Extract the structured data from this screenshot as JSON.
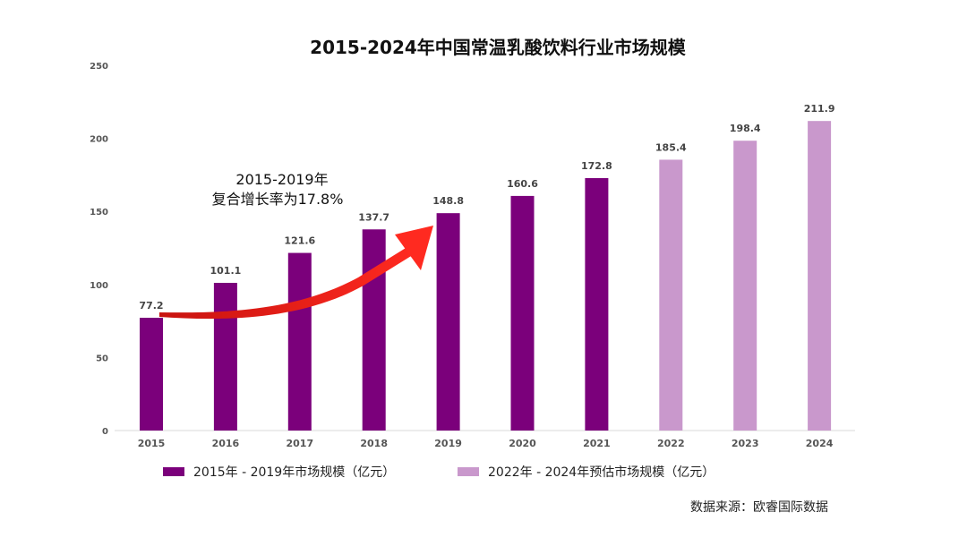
{
  "chart_data": {
    "type": "bar",
    "title": "2015-2024年中国常温乳酸饮料行业市场规模",
    "categories": [
      "2015",
      "2016",
      "2017",
      "2018",
      "2019",
      "2020",
      "2021",
      "2022",
      "2023",
      "2024"
    ],
    "values": [
      77.2,
      101.1,
      121.6,
      137.7,
      148.8,
      160.6,
      172.8,
      185.4,
      198.4,
      211.9
    ],
    "value_labels": [
      "77.2",
      "101.1",
      "121.6",
      "137.7",
      "148.8",
      "160.6",
      "172.8",
      "185.4",
      "198.4",
      "211.9"
    ],
    "series": [
      {
        "name": "2015年 - 2019年市场规模（亿元）",
        "color": "#7b007b",
        "categories": [
          "2015",
          "2016",
          "2017",
          "2018",
          "2019",
          "2020",
          "2021"
        ]
      },
      {
        "name": "2022年 - 2024年预估市场规模（亿元）",
        "color": "#c998cc",
        "categories": [
          "2022",
          "2023",
          "2024"
        ]
      }
    ],
    "yticks": [
      "0",
      "50",
      "100",
      "150",
      "200",
      "250"
    ],
    "ylim": [
      0,
      250
    ],
    "xlabel": "",
    "ylabel": "",
    "grid": false,
    "legend_position": "bottom",
    "annotation": {
      "line1": "2015-2019年",
      "line2": "复合增长率为17.8%",
      "arrow_color": "#e8211c"
    },
    "source": "数据来源：欧睿国际数据"
  }
}
